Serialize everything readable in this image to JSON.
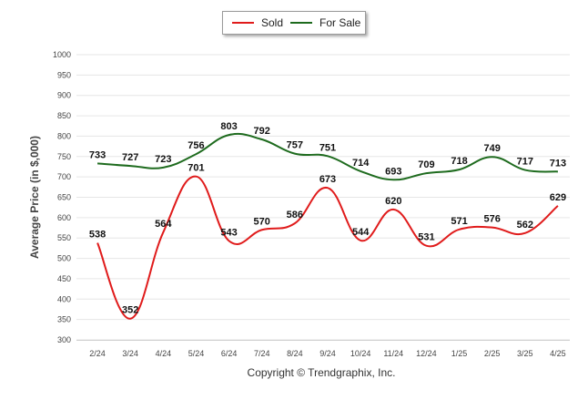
{
  "chart_data": {
    "type": "line",
    "ylabel": "Average Price (in $,000)",
    "ylim": [
      300,
      1000
    ],
    "yticks": [
      300,
      350,
      400,
      450,
      500,
      550,
      600,
      650,
      700,
      750,
      800,
      850,
      900,
      950,
      1000
    ],
    "categories": [
      "2/24",
      "3/24",
      "4/24",
      "5/24",
      "6/24",
      "7/24",
      "8/24",
      "9/24",
      "10/24",
      "11/24",
      "12/24",
      "1/25",
      "2/25",
      "3/25",
      "4/25"
    ],
    "grid": true,
    "legend_placement": "top-center",
    "series": [
      {
        "name": "Sold",
        "color": "#e01b1b",
        "values": [
          538,
          352,
          564,
          701,
          543,
          570,
          586,
          673,
          544,
          620,
          531,
          571,
          576,
          562,
          629
        ]
      },
      {
        "name": "For Sale",
        "color": "#1e6b1e",
        "values": [
          733,
          727,
          723,
          756,
          803,
          792,
          757,
          751,
          714,
          693,
          709,
          718,
          749,
          717,
          713
        ]
      }
    ]
  },
  "footer": {
    "copyright": "Copyright © Trendgraphix, Inc."
  }
}
